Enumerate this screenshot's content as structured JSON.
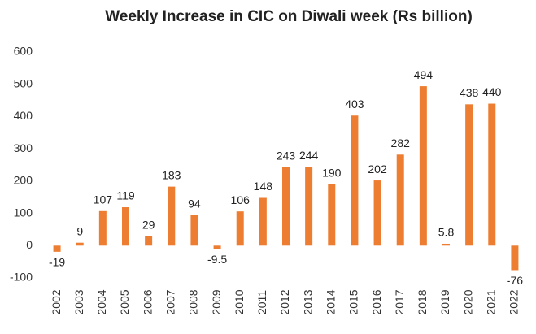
{
  "chart_data": {
    "type": "bar",
    "title": "Weekly Increase in CIC on Diwali week (Rs billion)",
    "categories": [
      "2002",
      "2003",
      "2004",
      "2005",
      "2006",
      "2007",
      "2008",
      "2009",
      "2010",
      "2011",
      "2012",
      "2013",
      "2014",
      "2015",
      "2016",
      "2017",
      "2018",
      "2019",
      "2020",
      "2021",
      "2022"
    ],
    "values": [
      -19,
      9,
      107,
      119,
      29,
      183,
      94,
      -9.5,
      106,
      148,
      243,
      244,
      190,
      403,
      202,
      282,
      494,
      5.8,
      438,
      440,
      -76
    ],
    "color": "#ed7d31",
    "ylim": [
      -100,
      600
    ],
    "yticks": [
      -100,
      0,
      100,
      200,
      300,
      400,
      500,
      600
    ],
    "grid": false
  }
}
